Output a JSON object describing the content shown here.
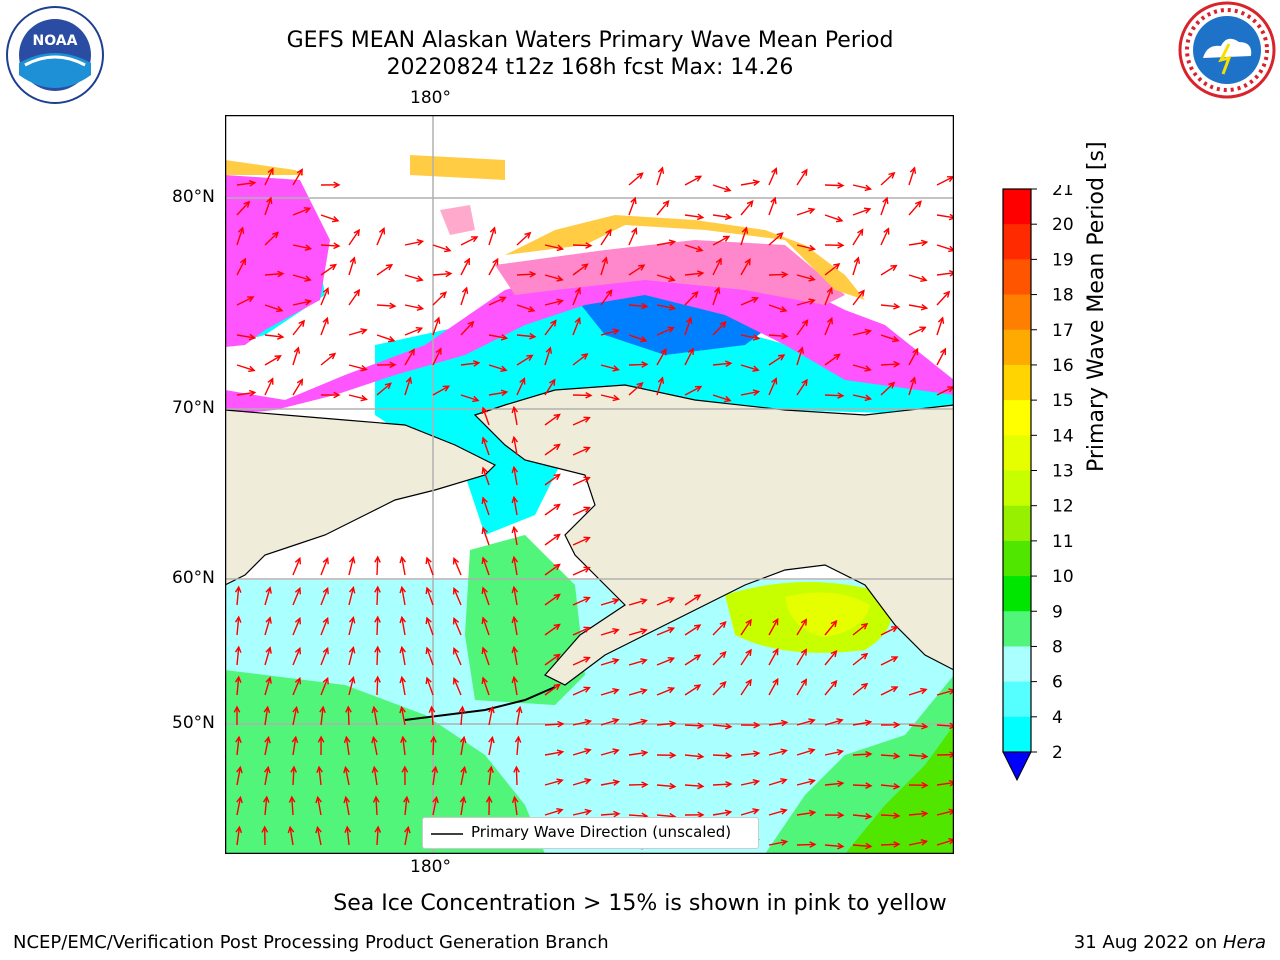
{
  "header": {
    "title_line1": "GEFS MEAN Alaskan Waters Primary Wave Mean Period",
    "title_line2": "20220824 t12z 168h fcst   Max: 14.26"
  },
  "logos": {
    "left": {
      "name": "noaa-logo",
      "text": "NOAA"
    },
    "right": {
      "name": "nws-logo"
    }
  },
  "map": {
    "top_longitude_label": "180°",
    "bottom_longitude_label": "180°",
    "latitude_labels": [
      "80°N",
      "70°N",
      "60°N",
      "50°N"
    ],
    "legend_label": "Primary Wave Direction (unscaled)",
    "colors": {
      "land": "#efedda",
      "arrow": "#ff0000",
      "grid": "#b0b0b0",
      "coast": "#000000"
    }
  },
  "colorbar": {
    "label": "Primary Wave Mean Period [s]",
    "ticks": [
      "21",
      "20",
      "19",
      "18",
      "17",
      "16",
      "15",
      "14",
      "13",
      "12",
      "11",
      "10",
      "9",
      "8",
      "6",
      "4",
      "2"
    ],
    "colors_top_to_bottom": [
      "#ff0000",
      "#ff2a00",
      "#ff5500",
      "#ff8000",
      "#ffaa00",
      "#ffd400",
      "#ffff00",
      "#e6ff00",
      "#c8ff00",
      "#96f000",
      "#50e600",
      "#00e600",
      "#50f57a",
      "#aaffff",
      "#55ffff",
      "#00ffff",
      "#0080ff"
    ],
    "extend_color": "#0000ff"
  },
  "caption": "Sea Ice Concentration > 15% is shown in pink to yellow",
  "footer": {
    "left": "NCEP/EMC/Verification Post Processing Product Generation Branch",
    "date": "31 Aug 2022 on ",
    "machine": "Hera"
  }
}
